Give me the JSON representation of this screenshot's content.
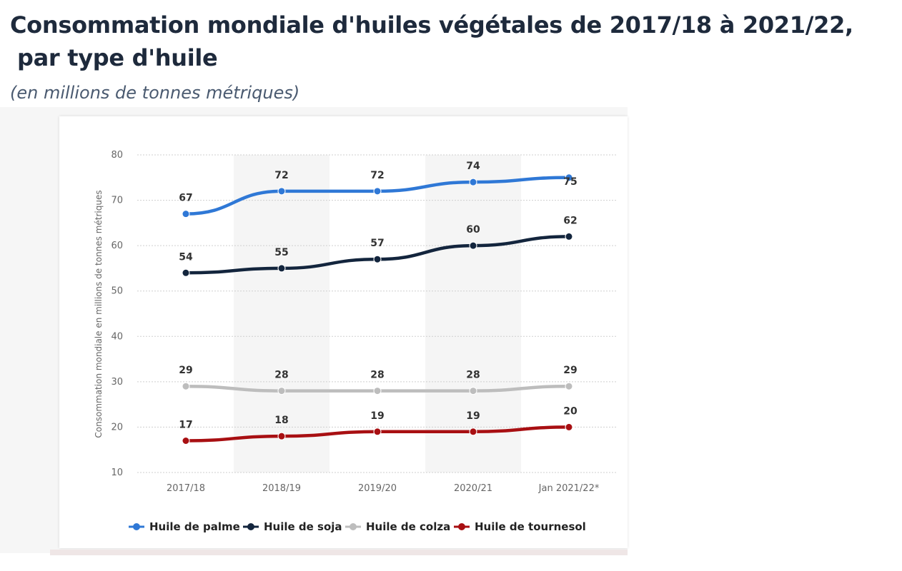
{
  "header": {
    "title_line1": "Consommation mondiale d'huiles végétales de 2017/18 à 2021/22,",
    "title_line2": " par type  d'huile",
    "subtitle": "(en millions de tonnes métriques)"
  },
  "chart_data": {
    "type": "line",
    "ylabel": "Consommation mondiale en millions de tonnes métriques",
    "xlabel": "",
    "ylim": [
      10,
      80
    ],
    "yticks": [
      10,
      20,
      30,
      40,
      50,
      60,
      70,
      80
    ],
    "categories": [
      "2017/18",
      "2018/19",
      "2019/20",
      "2020/21",
      "Jan 2021/22*"
    ],
    "grid": "horizontal dotted",
    "alternating_column_shading": true,
    "legend_position": "bottom",
    "series": [
      {
        "name": "Huile de palme",
        "color": "#2f78d6",
        "values": [
          67,
          72,
          72,
          74,
          75
        ]
      },
      {
        "name": "Huile de soja",
        "color": "#13253d",
        "values": [
          54,
          55,
          57,
          60,
          62
        ]
      },
      {
        "name": "Huile de colza",
        "color": "#bdbdbd",
        "values": [
          29,
          28,
          28,
          28,
          29
        ]
      },
      {
        "name": "Huile de tournesol",
        "color": "#a80f12",
        "values": [
          17,
          18,
          19,
          19,
          20
        ]
      }
    ]
  }
}
